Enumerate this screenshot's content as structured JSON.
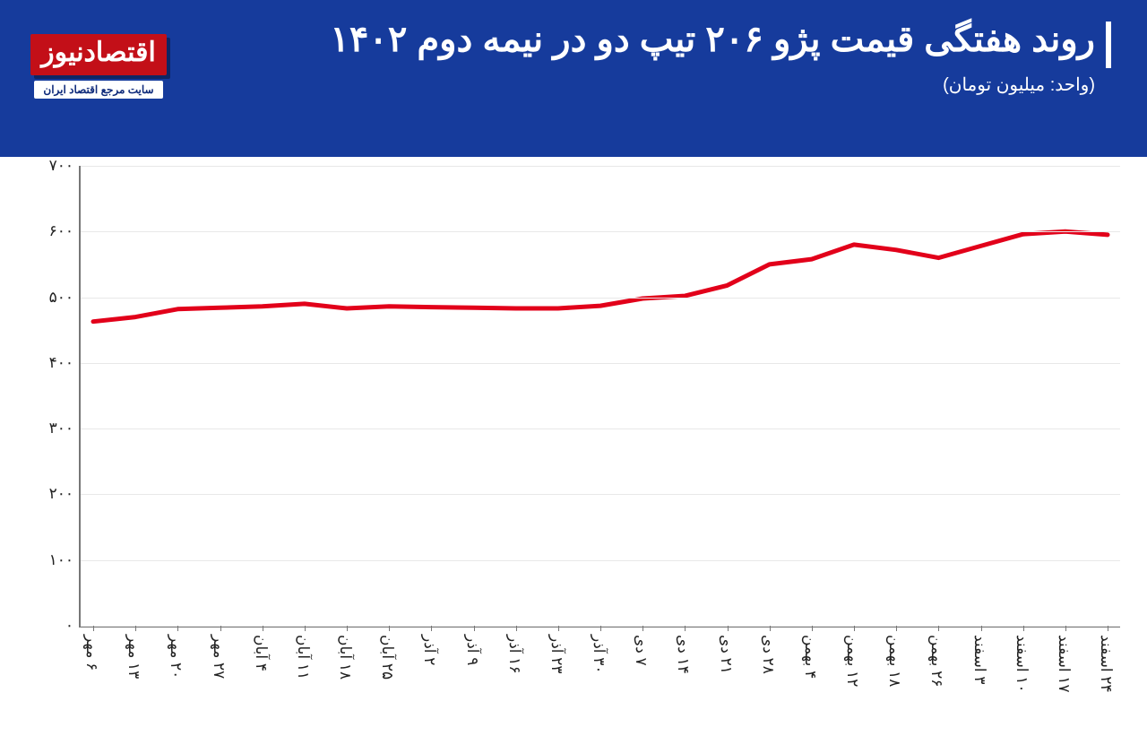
{
  "header": {
    "background_color": "#163b9c",
    "title": "روند هفتگی قیمت پژو ۲۰۶ تیپ دو در نیمه دوم ۱۴۰۲",
    "title_color": "#ffffff",
    "title_fontsize": 40,
    "title_fontweight": 700,
    "subtitle": "(واحد: میلیون تومان)",
    "subtitle_color": "#ffffff",
    "subtitle_fontsize": 20,
    "accent_bar_color": "#ffffff",
    "logo_main": "اقتصادنیوز",
    "logo_main_bg": "#c30f18",
    "logo_main_color": "#ffffff",
    "logo_sub": "سایت مرجع اقتصاد ایران",
    "logo_sub_bg": "#ffffff",
    "logo_sub_color": "#0e2a7a"
  },
  "chart": {
    "type": "line",
    "background_color": "#ffffff",
    "line_color": "#e2001a",
    "line_width": 5,
    "axis_color": "#777777",
    "grid_color": "#e8e8e8",
    "tick_label_color": "#222222",
    "tick_fontsize": 17,
    "ylim": [
      0,
      700
    ],
    "ytick_step": 100,
    "yticks": [
      "۰",
      "۱۰۰",
      "۲۰۰",
      "۳۰۰",
      "۴۰۰",
      "۵۰۰",
      "۶۰۰",
      "۷۰۰"
    ],
    "x_labels": [
      "۶ مهر",
      "۱۳ مهر",
      "۲۰ مهر",
      "۲۷ مهر",
      "۴ آبان",
      "۱۱ آبان",
      "۱۸ آبان",
      "۲۵ آبان",
      "۲ آذر",
      "۹ آذر",
      "۱۶ آذر",
      "۲۳ آذر",
      "۳۰ آذر",
      "۷ دی",
      "۱۴ دی",
      "۲۱ دی",
      "۲۸ دی",
      "۴ بهمن",
      "۱۲ بهمن",
      "۱۸ بهمن",
      "۲۶ بهمن",
      "۳ اسفند",
      "۱۰ اسفند",
      "۱۷ اسفند",
      "۲۴ اسفند"
    ],
    "values": [
      463,
      470,
      482,
      484,
      486,
      490,
      483,
      486,
      485,
      484,
      483,
      483,
      487,
      498,
      502,
      518,
      550,
      558,
      580,
      572,
      560,
      578,
      596,
      600,
      595
    ],
    "xlabel_rotation": 90
  }
}
